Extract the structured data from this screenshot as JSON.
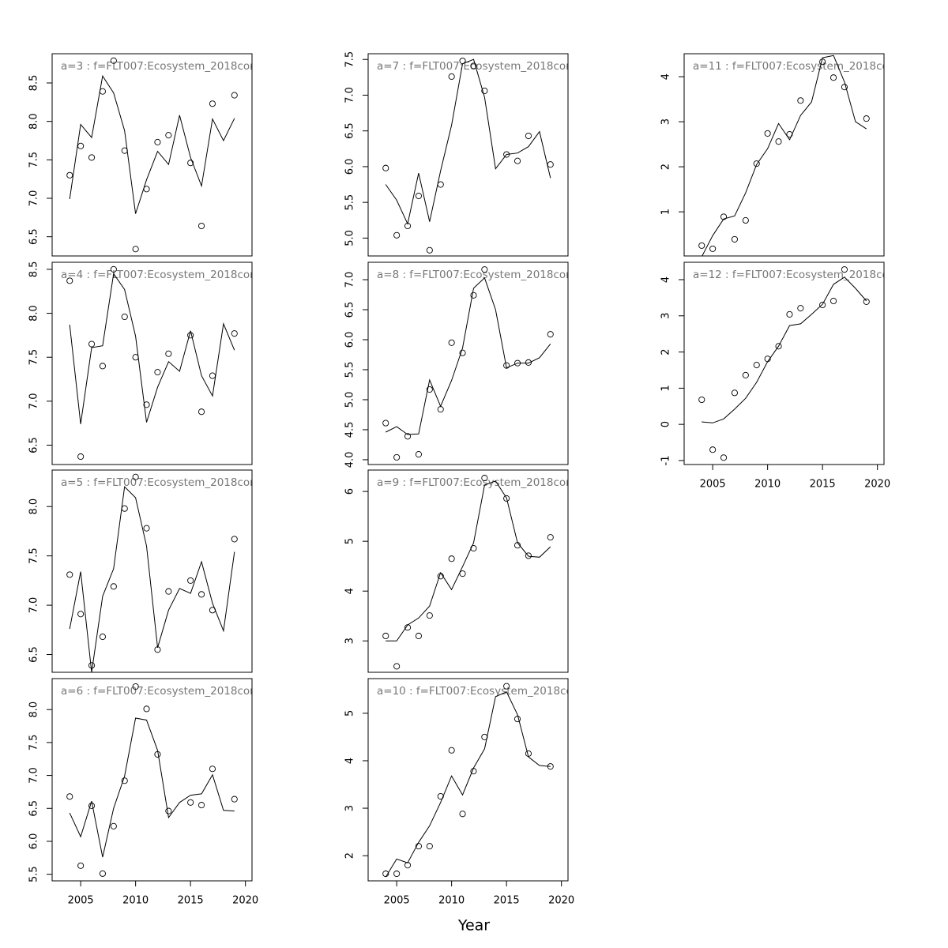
{
  "xlabel": "Year",
  "chart_data": [
    {
      "type": "line",
      "title": "a=3 : f=FLT007:Ecosystem_2018cor",
      "x": [
        2004,
        2005,
        2006,
        2007,
        2008,
        2009,
        2010,
        2011,
        2012,
        2013,
        2014,
        2015,
        2016,
        2017,
        2018,
        2019
      ],
      "series": [
        {
          "style": "points",
          "values": [
            7.3,
            7.68,
            7.53,
            8.39,
            8.79,
            7.62,
            6.34,
            7.12,
            7.73,
            7.82,
            null,
            7.46,
            6.64,
            8.23,
            null,
            8.34
          ]
        },
        {
          "style": "line",
          "values": [
            6.99,
            7.96,
            7.79,
            8.59,
            8.37,
            7.88,
            6.8,
            7.24,
            7.61,
            7.44,
            8.08,
            7.53,
            7.16,
            8.03,
            7.75,
            8.04
          ]
        }
      ],
      "xlim": [
        2002.4,
        2020.6
      ],
      "ylim": [
        6.25,
        8.88
      ],
      "yticks": [
        6.5,
        {
          "value": 7,
          "label": "7.0"
        },
        7.5,
        {
          "value": 8,
          "label": "8.0"
        },
        8.5
      ]
    },
    {
      "type": "line",
      "title": "a=4 : f=FLT007:Ecosystem_2018cor",
      "x": [
        2004,
        2005,
        2006,
        2007,
        2008,
        2009,
        2010,
        2011,
        2012,
        2013,
        2014,
        2015,
        2016,
        2017,
        2018,
        2019
      ],
      "series": [
        {
          "style": "points",
          "values": [
            8.37,
            6.37,
            7.65,
            7.4,
            8.5,
            7.96,
            7.5,
            6.96,
            7.33,
            7.54,
            null,
            7.75,
            6.88,
            7.29,
            null,
            7.77
          ]
        },
        {
          "style": "line",
          "values": [
            7.87,
            6.74,
            7.61,
            7.63,
            8.45,
            8.27,
            7.74,
            6.76,
            7.16,
            7.45,
            7.34,
            7.8,
            7.29,
            7.06,
            7.88,
            7.58
          ]
        }
      ],
      "xlim": [
        2002.4,
        2020.6
      ],
      "ylim": [
        6.28,
        8.58
      ],
      "yticks": [
        6.5,
        {
          "value": 7,
          "label": "7.0"
        },
        7.5,
        {
          "value": 8,
          "label": "8.0"
        },
        8.5
      ]
    },
    {
      "type": "line",
      "title": "a=5 : f=FLT007:Ecosystem_2018cor",
      "x": [
        2004,
        2005,
        2006,
        2007,
        2008,
        2009,
        2010,
        2011,
        2012,
        2013,
        2014,
        2015,
        2016,
        2017,
        2018,
        2019
      ],
      "series": [
        {
          "style": "points",
          "values": [
            7.31,
            6.91,
            6.39,
            6.68,
            7.19,
            7.98,
            8.3,
            7.78,
            6.55,
            7.14,
            null,
            7.25,
            7.11,
            6.95,
            null,
            7.67
          ]
        },
        {
          "style": "line",
          "values": [
            6.76,
            7.34,
            6.32,
            7.09,
            7.37,
            8.2,
            8.09,
            7.6,
            6.57,
            6.95,
            7.17,
            7.12,
            7.44,
            7.02,
            6.74,
            7.54
          ]
        }
      ],
      "xlim": [
        2002.4,
        2020.6
      ],
      "ylim": [
        6.32,
        8.37
      ],
      "yticks": [
        6.5,
        {
          "value": 7,
          "label": "7.0"
        },
        7.5,
        {
          "value": 8,
          "label": "8.0"
        }
      ]
    },
    {
      "type": "line",
      "title": "a=6 : f=FLT007:Ecosystem_2018cor",
      "x": [
        2004,
        2005,
        2006,
        2007,
        2008,
        2009,
        2010,
        2011,
        2012,
        2013,
        2014,
        2015,
        2016,
        2017,
        2018,
        2019
      ],
      "series": [
        {
          "style": "points",
          "values": [
            6.68,
            5.63,
            6.54,
            5.51,
            6.23,
            6.92,
            8.35,
            8.01,
            7.32,
            6.46,
            null,
            6.59,
            6.55,
            7.1,
            null,
            6.64
          ]
        },
        {
          "style": "line",
          "values": [
            6.43,
            6.07,
            6.61,
            5.76,
            6.5,
            6.99,
            7.87,
            7.84,
            7.38,
            6.36,
            6.59,
            6.7,
            6.72,
            7.01,
            6.47,
            6.46
          ]
        }
      ],
      "xlim": [
        2002.4,
        2020.6
      ],
      "ylim": [
        5.4,
        8.47
      ],
      "yticks": [
        5.5,
        {
          "value": 6,
          "label": "6.0"
        },
        6.5,
        {
          "value": 7,
          "label": "7.0"
        },
        7.5,
        {
          "value": 8,
          "label": "8.0"
        }
      ],
      "xticks": [
        2005,
        2010,
        2015,
        2020
      ]
    },
    {
      "type": "line",
      "title": "a=7 : f=FLT007:Ecosystem_2018cor",
      "x": [
        2004,
        2005,
        2006,
        2007,
        2008,
        2009,
        2010,
        2011,
        2012,
        2013,
        2014,
        2015,
        2016,
        2017,
        2018,
        2019
      ],
      "series": [
        {
          "style": "points",
          "values": [
            5.98,
            5.04,
            5.17,
            5.59,
            4.83,
            5.75,
            7.26,
            7.48,
            7.41,
            7.06,
            null,
            6.17,
            6.08,
            6.43,
            null,
            6.03
          ]
        },
        {
          "style": "line",
          "values": [
            5.75,
            5.53,
            5.2,
            5.91,
            5.23,
            5.94,
            6.58,
            7.44,
            7.5,
            6.97,
            5.97,
            6.17,
            6.19,
            6.28,
            6.49,
            5.84
          ]
        }
      ],
      "xlim": [
        2002.4,
        2020.6
      ],
      "ylim": [
        4.75,
        7.58
      ],
      "yticks": [
        {
          "value": 5,
          "label": "5.0"
        },
        5.5,
        {
          "value": 6,
          "label": "6.0"
        },
        6.5,
        {
          "value": 7,
          "label": "7.0"
        },
        7.5
      ]
    },
    {
      "type": "line",
      "title": "a=8 : f=FLT007:Ecosystem_2018cor",
      "x": [
        2004,
        2005,
        2006,
        2007,
        2008,
        2009,
        2010,
        2011,
        2012,
        2013,
        2014,
        2015,
        2016,
        2017,
        2018,
        2019
      ],
      "series": [
        {
          "style": "points",
          "values": [
            4.61,
            4.04,
            4.39,
            4.09,
            5.17,
            4.84,
            5.95,
            5.78,
            6.74,
            7.17,
            null,
            5.57,
            5.61,
            5.62,
            null,
            6.09
          ]
        },
        {
          "style": "line",
          "values": [
            4.46,
            4.55,
            4.42,
            4.43,
            5.33,
            4.89,
            5.32,
            5.86,
            6.86,
            7.03,
            6.5,
            5.53,
            5.61,
            5.61,
            5.7,
            5.93
          ]
        }
      ],
      "xlim": [
        2002.4,
        2020.6
      ],
      "ylim": [
        3.92,
        7.29
      ],
      "yticks": [
        {
          "value": 4,
          "label": "4.0"
        },
        4.5,
        {
          "value": 5,
          "label": "5.0"
        },
        5.5,
        {
          "value": 6,
          "label": "6.0"
        },
        6.5,
        {
          "value": 7,
          "label": "7.0"
        }
      ]
    },
    {
      "type": "line",
      "title": "a=9 : f=FLT007:Ecosystem_2018cor",
      "x": [
        2004,
        2005,
        2006,
        2007,
        2008,
        2009,
        2010,
        2011,
        2012,
        2013,
        2014,
        2015,
        2016,
        2017,
        2018,
        2019
      ],
      "series": [
        {
          "style": "points",
          "values": [
            3.1,
            2.49,
            3.27,
            3.1,
            3.51,
            4.3,
            4.65,
            4.35,
            4.86,
            6.27,
            null,
            5.86,
            4.92,
            4.71,
            null,
            5.08
          ]
        },
        {
          "style": "line",
          "values": [
            3.0,
            3.0,
            3.32,
            3.46,
            3.7,
            4.37,
            4.03,
            4.49,
            4.97,
            6.13,
            6.21,
            5.87,
            4.97,
            4.7,
            4.68,
            4.89
          ]
        }
      ],
      "xlim": [
        2002.4,
        2020.6
      ],
      "ylim": [
        2.37,
        6.43
      ],
      "yticks": [
        3,
        4,
        5,
        6
      ]
    },
    {
      "type": "line",
      "title": "a=10 : f=FLT007:Ecosystem_2018co",
      "x": [
        2004,
        2005,
        2006,
        2007,
        2008,
        2009,
        2010,
        2011,
        2012,
        2013,
        2014,
        2015,
        2016,
        2017,
        2018,
        2019
      ],
      "series": [
        {
          "style": "points",
          "values": [
            1.62,
            1.62,
            1.8,
            2.2,
            2.2,
            3.25,
            4.22,
            2.88,
            3.78,
            4.5,
            null,
            5.57,
            4.88,
            4.15,
            null,
            3.88
          ]
        },
        {
          "style": "line",
          "values": [
            1.55,
            1.93,
            1.85,
            2.28,
            2.63,
            3.12,
            3.68,
            3.28,
            3.85,
            4.25,
            5.35,
            5.45,
            4.97,
            4.08,
            3.9,
            3.88
          ]
        }
      ],
      "xlim": [
        2002.4,
        2020.6
      ],
      "ylim": [
        1.47,
        5.73
      ],
      "yticks": [
        2,
        3,
        4,
        5
      ],
      "xticks": [
        2005,
        2010,
        2015,
        2020
      ]
    },
    {
      "type": "line",
      "title": "a=11 : f=FLT007:Ecosystem_2018cor",
      "x": [
        2004,
        2005,
        2006,
        2007,
        2008,
        2009,
        2010,
        2011,
        2012,
        2013,
        2014,
        2015,
        2016,
        2017,
        2018,
        2019
      ],
      "series": [
        {
          "style": "points",
          "values": [
            0.25,
            0.18,
            0.89,
            0.39,
            0.81,
            2.07,
            2.74,
            2.56,
            2.72,
            3.47,
            null,
            4.33,
            3.98,
            3.77,
            null,
            3.07
          ]
        },
        {
          "style": "line",
          "values": [
            0.0,
            0.47,
            0.84,
            0.91,
            1.42,
            2.05,
            2.4,
            2.96,
            2.6,
            3.14,
            3.44,
            4.42,
            4.47,
            3.88,
            3.0,
            2.84
          ]
        }
      ],
      "xlim": [
        2002.4,
        2020.6
      ],
      "ylim": [
        0.02,
        4.51
      ],
      "yticks": [
        1,
        2,
        3,
        4
      ]
    },
    {
      "type": "line",
      "title": "a=12 : f=FLT007:Ecosystem_2018cor",
      "x": [
        2004,
        2005,
        2006,
        2007,
        2008,
        2009,
        2010,
        2011,
        2012,
        2013,
        2014,
        2015,
        2016,
        2017,
        2018,
        2019
      ],
      "series": [
        {
          "style": "points",
          "values": [
            0.68,
            -0.7,
            -0.92,
            0.87,
            1.36,
            1.64,
            1.81,
            2.16,
            3.04,
            3.21,
            null,
            3.3,
            3.41,
            4.28,
            null,
            3.39
          ]
        },
        {
          "style": "line",
          "values": [
            0.07,
            0.04,
            0.15,
            0.42,
            0.72,
            1.16,
            1.73,
            2.16,
            2.73,
            2.78,
            3.04,
            3.32,
            3.87,
            4.07,
            3.76,
            3.41
          ]
        }
      ],
      "xlim": [
        2002.4,
        2020.6
      ],
      "ylim": [
        -1.11,
        4.48
      ],
      "yticks": [
        -1,
        0,
        1,
        2,
        3,
        4
      ],
      "xticks": [
        2005,
        2010,
        2015,
        2020
      ]
    }
  ]
}
